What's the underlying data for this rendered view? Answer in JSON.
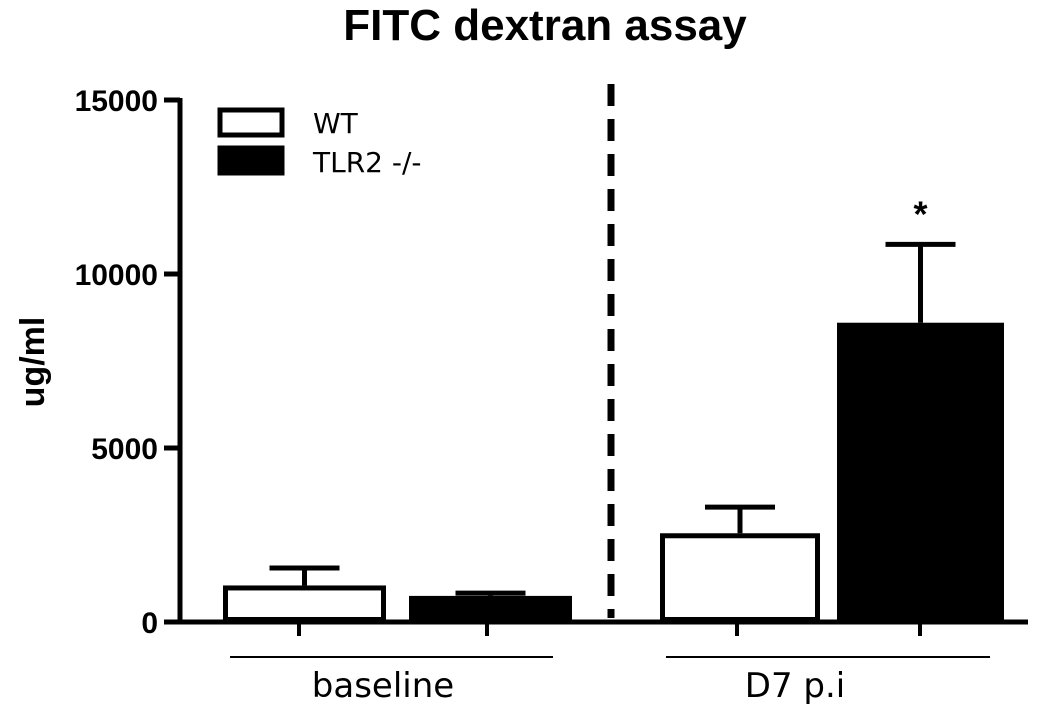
{
  "chart_data": {
    "type": "bar",
    "title": "FITC dextran assay",
    "ylabel": "ug/ml",
    "ylim": [
      0,
      15000
    ],
    "yticks": [
      "0",
      "5000",
      "10000",
      "15000"
    ],
    "categories": [
      "baseline",
      "D7 p.i"
    ],
    "series": [
      {
        "name": "WT",
        "fill": "#ffffff",
        "values": [
          1050,
          2550
        ],
        "errors": [
          500,
          750
        ]
      },
      {
        "name": "TLR2 -/-",
        "fill": "#000000",
        "values": [
          750,
          8600
        ],
        "errors": [
          80,
          2250
        ]
      }
    ],
    "annotations": [
      {
        "text": "*",
        "category": "D7 p.i",
        "series": "TLR2 -/-"
      }
    ],
    "separator": "dashed-vertical",
    "legend_position": "top-left",
    "grid": false
  }
}
